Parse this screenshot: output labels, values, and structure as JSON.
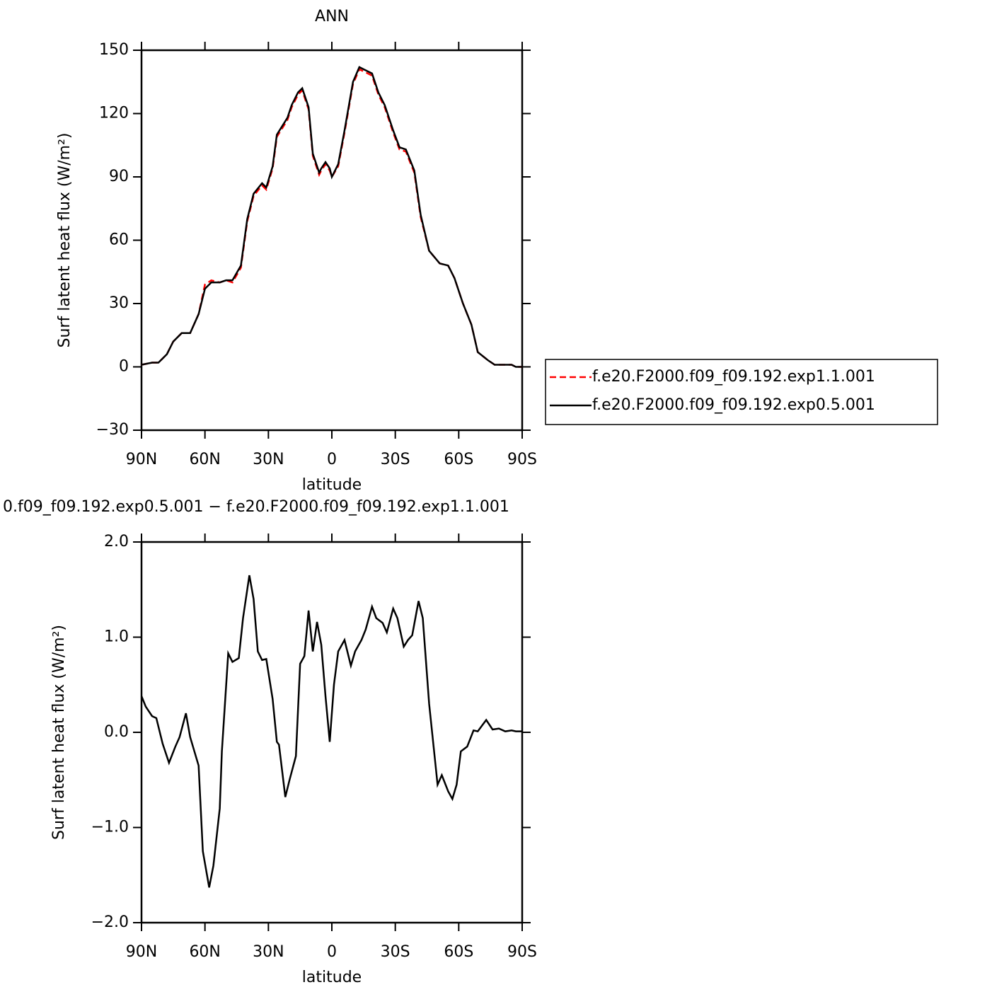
{
  "chart_data": [
    {
      "type": "line",
      "title": "ANN",
      "xlabel": "latitude",
      "ylabel": "Surf latent heat flux (W/m²)",
      "x": [
        90,
        85,
        82,
        78,
        75,
        71,
        67,
        63,
        60,
        57,
        53,
        50,
        47,
        43,
        40,
        37,
        33,
        31,
        28,
        26,
        21,
        19,
        16,
        14,
        11,
        9,
        6,
        5,
        3,
        1,
        0,
        -3,
        -6,
        -10,
        -13,
        -15,
        -19,
        -22,
        -25,
        -29,
        -32,
        -35,
        -39,
        -42,
        -46,
        -51,
        -55,
        -58,
        -62,
        -66,
        -69,
        -74,
        -77,
        -81,
        -85,
        -87,
        -90
      ],
      "series": [
        {
          "name": "f.e20.F2000.f09_f09.192.exp1.1.001",
          "color": "#ff0000",
          "linestyle": "dashed",
          "values": [
            1,
            2,
            2,
            6,
            12,
            16,
            16,
            25,
            39,
            41,
            40,
            41,
            40,
            47,
            69,
            81,
            86,
            84,
            94,
            109,
            117,
            123,
            129,
            131,
            122,
            100,
            91,
            93,
            96,
            93,
            90,
            95,
            111,
            134,
            141,
            140,
            138,
            129,
            123,
            111,
            103,
            102,
            92,
            71,
            55,
            49,
            48,
            42,
            30,
            20,
            7,
            3,
            1,
            1,
            1,
            0,
            0
          ]
        },
        {
          "name": "f.e20.F2000.f09_f09.192.exp0.5.001",
          "color": "#000000",
          "linestyle": "solid",
          "values": [
            1,
            2,
            2,
            6,
            12,
            16,
            16,
            25,
            37,
            40,
            40,
            41,
            41,
            48,
            70,
            82,
            87,
            85,
            95,
            110,
            118,
            124,
            130,
            132,
            123,
            101,
            92,
            94,
            97,
            94,
            90,
            96,
            112,
            135,
            142,
            141,
            139,
            130,
            124,
            112,
            104,
            103,
            93,
            72,
            55,
            49,
            48,
            42,
            30,
            20,
            7,
            3,
            1,
            1,
            1,
            0,
            0
          ]
        }
      ],
      "xlim": [
        90,
        -90
      ],
      "ylim": [
        -30,
        150
      ],
      "xticks": [
        {
          "value": 90,
          "label": "90N"
        },
        {
          "value": 60,
          "label": "60N"
        },
        {
          "value": 30,
          "label": "30N"
        },
        0,
        {
          "value": -30,
          "label": "30S"
        },
        {
          "value": -60,
          "label": "60S"
        },
        {
          "value": -90,
          "label": "90S"
        }
      ],
      "yticks": [
        {
          "value": -30,
          "label": "−30"
        },
        0,
        30,
        60,
        90,
        120,
        150
      ],
      "legend": "right"
    },
    {
      "type": "line",
      "title": "0.f09_f09.192.exp0.5.001 − f.e20.F2000.f09_f09.192.exp1.1.001",
      "xlabel": "latitude",
      "ylabel": "Surf latent heat flux (W/m²)",
      "x": [
        90,
        88,
        85,
        83,
        80,
        77,
        74,
        72,
        69,
        67,
        63,
        61,
        58,
        56,
        53,
        52,
        49,
        47,
        44,
        42,
        39,
        37,
        35,
        33,
        31,
        28,
        26,
        25,
        22,
        20,
        17,
        15,
        13,
        11,
        9,
        7,
        5,
        3,
        1,
        -1,
        -3,
        -6,
        -9,
        -11,
        -14,
        -16,
        -19,
        -21,
        -24,
        -26,
        -29,
        -31,
        -34,
        -36,
        -38,
        -41,
        -43,
        -46,
        -50,
        -52,
        -55,
        -57,
        -59,
        -61,
        -64,
        -67,
        -69,
        -72,
        -73,
        -76,
        -79,
        -82,
        -85,
        -87,
        -90
      ],
      "series": [
        {
          "name": "",
          "color": "#000000",
          "linestyle": "solid",
          "values": [
            0.38,
            0.27,
            0.17,
            0.15,
            -0.12,
            -0.32,
            -0.15,
            -0.05,
            0.2,
            -0.05,
            -0.35,
            -1.25,
            -1.63,
            -1.4,
            -0.8,
            -0.2,
            0.83,
            0.74,
            0.78,
            1.2,
            1.65,
            1.4,
            0.85,
            0.76,
            0.77,
            0.35,
            -0.1,
            -0.13,
            -0.68,
            -0.5,
            -0.25,
            0.72,
            0.8,
            1.28,
            0.85,
            1.16,
            0.92,
            0.38,
            -0.1,
            0.5,
            0.85,
            0.97,
            0.7,
            0.85,
            0.97,
            1.08,
            1.32,
            1.2,
            1.15,
            1.05,
            1.3,
            1.2,
            0.9,
            0.97,
            1.02,
            1.38,
            1.2,
            0.3,
            -0.55,
            -0.45,
            -0.62,
            -0.7,
            -0.55,
            -0.2,
            -0.15,
            0.02,
            0.01,
            0.1,
            0.13,
            0.03,
            0.04,
            0.01,
            0.02,
            0.01,
            0.01
          ]
        }
      ],
      "xlim": [
        90,
        -90
      ],
      "ylim": [
        -2,
        2
      ],
      "xticks": [
        {
          "value": 90,
          "label": "90N"
        },
        {
          "value": 60,
          "label": "60N"
        },
        {
          "value": 30,
          "label": "30N"
        },
        0,
        {
          "value": -30,
          "label": "30S"
        },
        {
          "value": -60,
          "label": "60S"
        },
        {
          "value": -90,
          "label": "90S"
        }
      ],
      "yticks": [
        {
          "value": -2,
          "label": "−2.0"
        },
        {
          "value": -1,
          "label": "−1.0"
        },
        {
          "value": 0,
          "label": "0.0"
        },
        {
          "value": 1,
          "label": "1.0"
        },
        {
          "value": 2,
          "label": "2.0"
        }
      ]
    }
  ]
}
